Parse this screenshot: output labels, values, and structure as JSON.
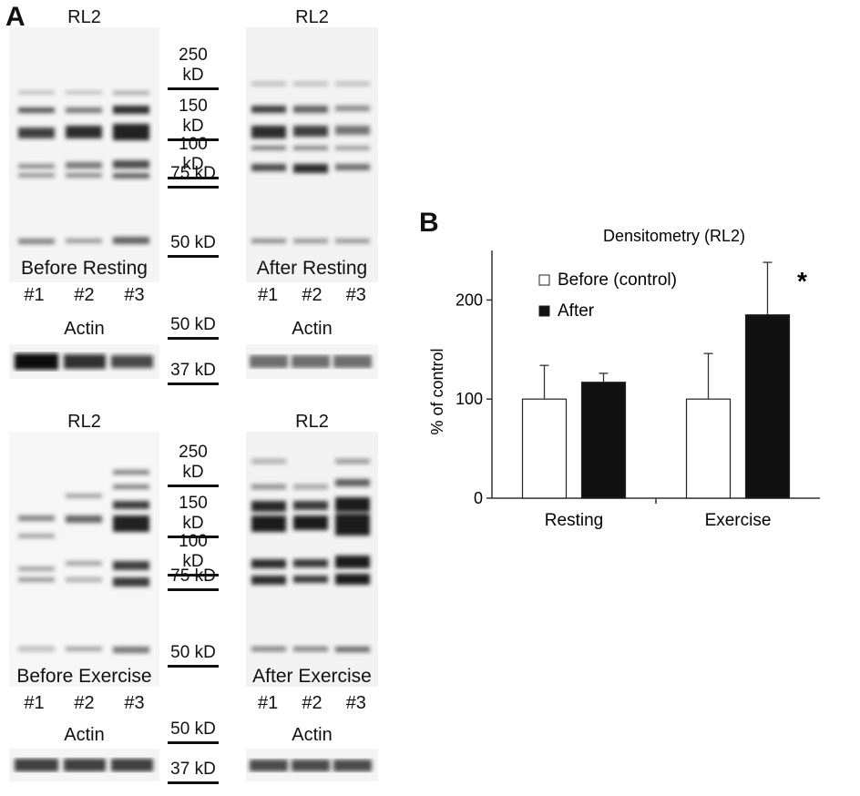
{
  "panels": {
    "a_label": "A",
    "b_label": "B"
  },
  "gels": [
    {
      "id": "before-resting",
      "title": "RL2",
      "caption": "Before Resting",
      "lanes": [
        "#1",
        "#2",
        "#3"
      ],
      "actin": "Actin"
    },
    {
      "id": "after-resting",
      "title": "RL2",
      "caption": "After Resting",
      "lanes": [
        "#1",
        "#2",
        "#3"
      ],
      "actin": "Actin"
    },
    {
      "id": "before-exercise",
      "title": "RL2",
      "caption": "Before Exercise",
      "lanes": [
        "#1",
        "#2",
        "#3"
      ],
      "actin": "Actin"
    },
    {
      "id": "after-exercise",
      "title": "RL2",
      "caption": "After Exercise",
      "lanes": [
        "#1",
        "#2",
        "#3"
      ],
      "actin": "Actin"
    }
  ],
  "markers_top": [
    "250 kD",
    "150 kD",
    "100 kD",
    "75 kD",
    "50 kD",
    "50 kD",
    "37 kD"
  ],
  "markers_bottom": [
    "250 kD",
    "150 kD",
    "100 kD",
    "75 kD",
    "50 kD",
    "50 kD",
    "37 kD"
  ],
  "chart_data": {
    "type": "bar",
    "title": "Densitometry (RL2)",
    "xlabel": "",
    "ylabel": "% of control",
    "categories": [
      "Resting",
      "Exercise"
    ],
    "ylim": [
      0,
      250
    ],
    "yticks": [
      "0",
      "100",
      "200"
    ],
    "series": [
      {
        "name": "Before (control)",
        "color": "#ffffff",
        "values": [
          100,
          100
        ],
        "error": [
          34,
          46
        ]
      },
      {
        "name": "After",
        "color": "#111111",
        "values": [
          117,
          185
        ],
        "error": [
          9,
          53
        ]
      }
    ],
    "annotations": [
      {
        "text": "*",
        "category": "Exercise",
        "series": "After"
      }
    ],
    "legend_position": "top-left",
    "grid": false
  }
}
